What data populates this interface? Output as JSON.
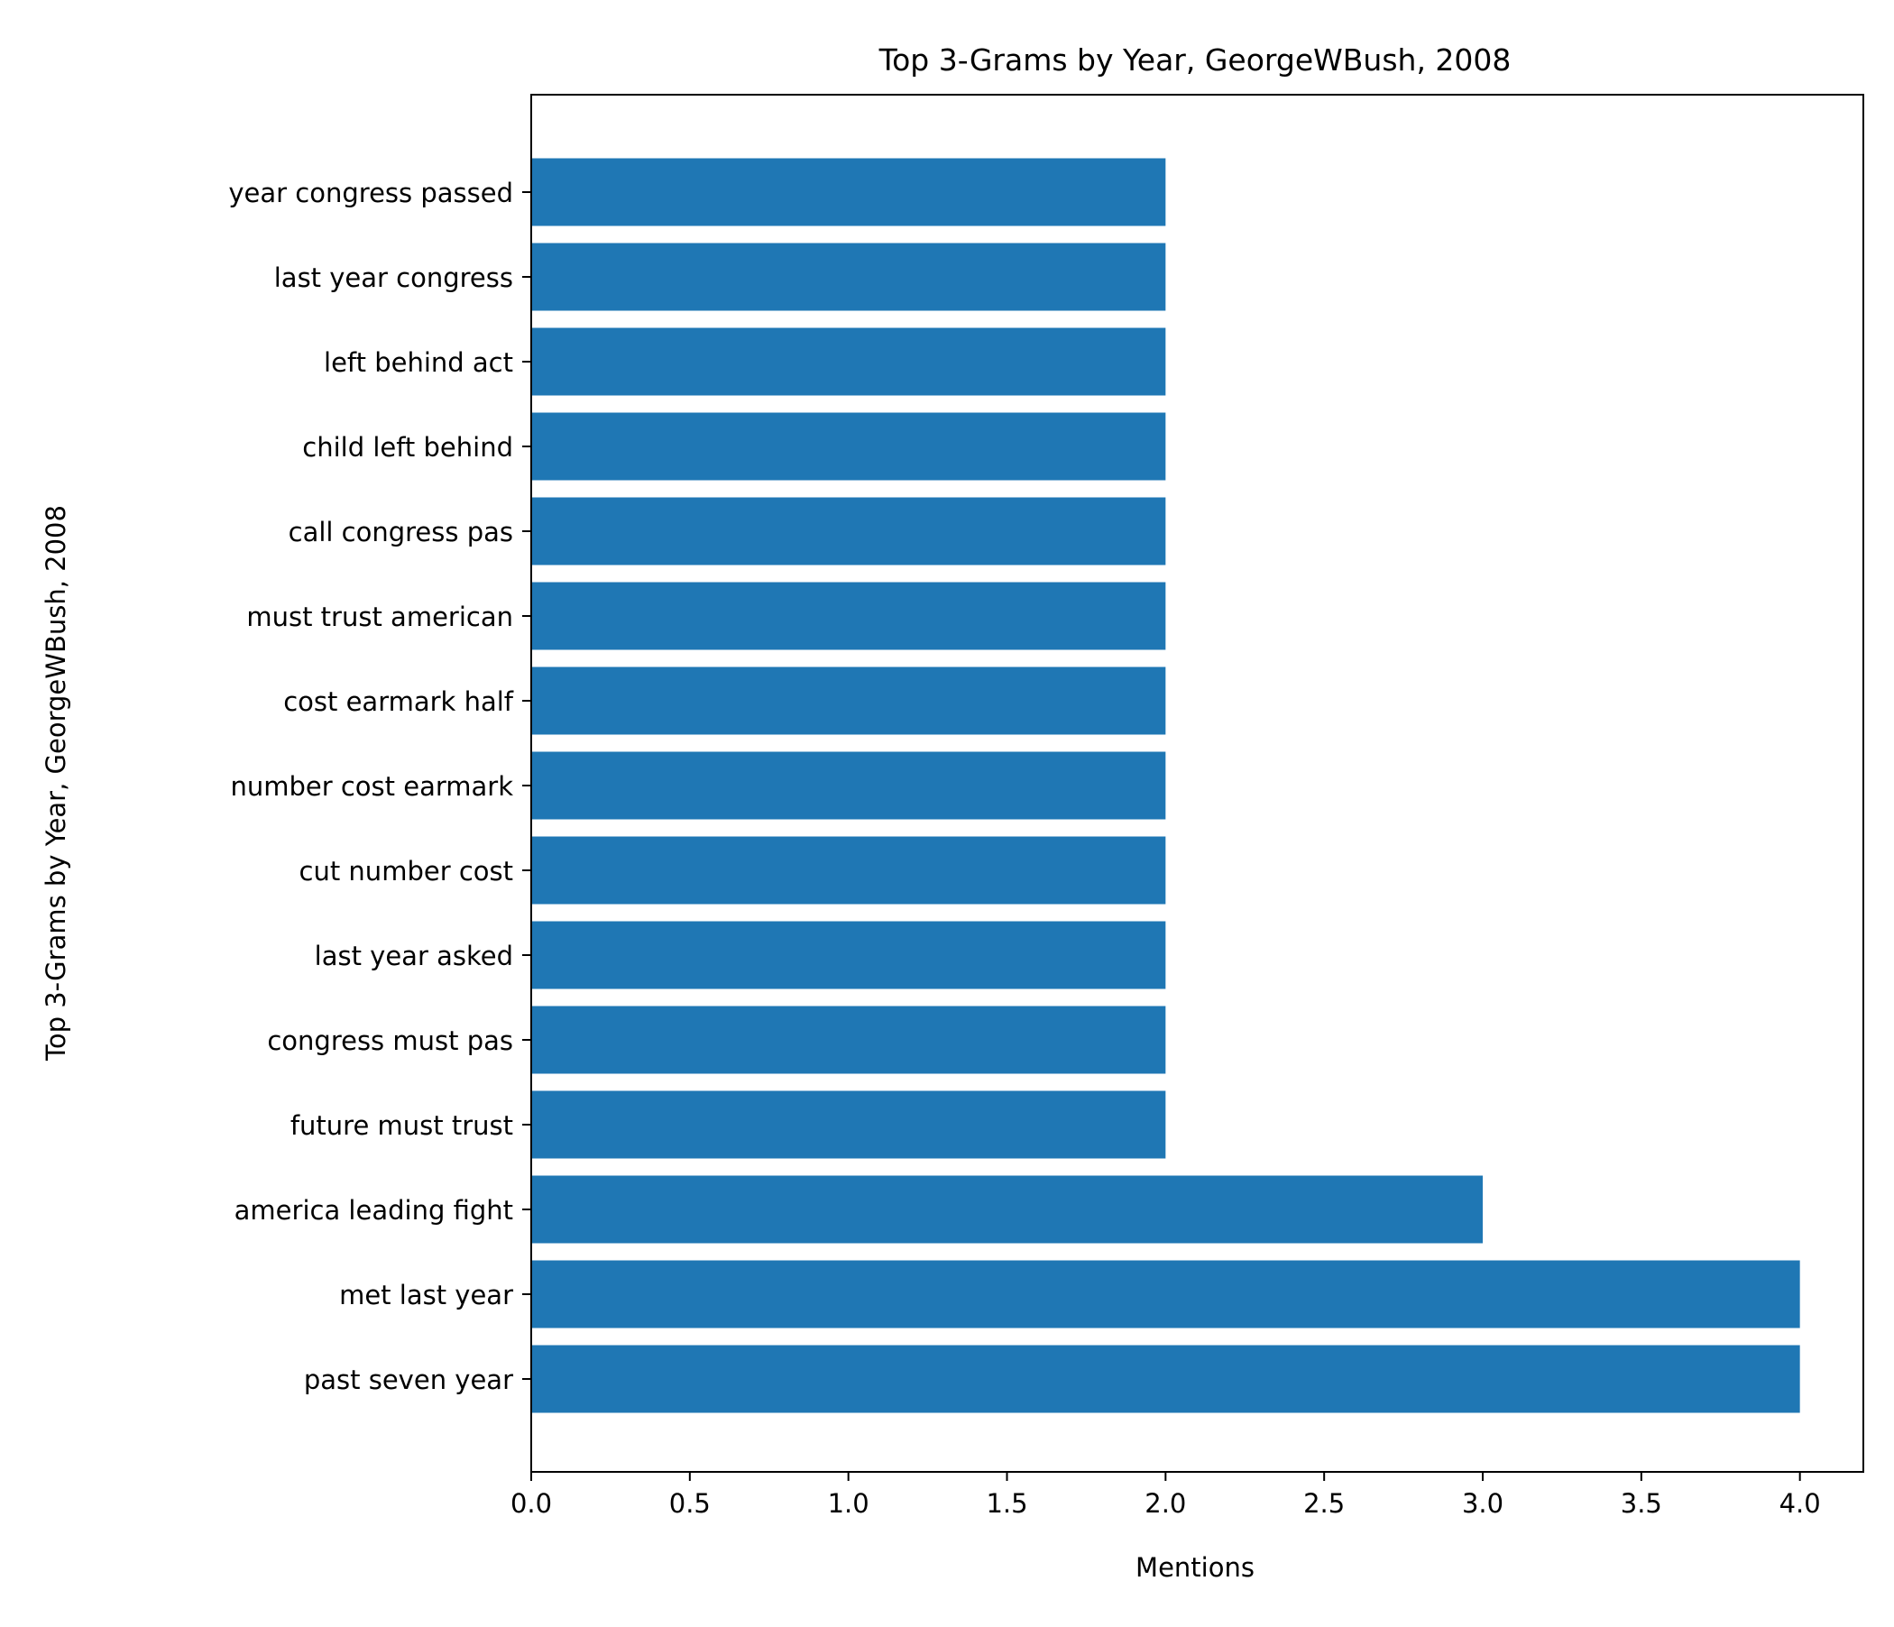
{
  "chart_data": {
    "type": "bar",
    "orientation": "horizontal",
    "title": "Top 3-Grams by Year, GeorgeWBush, 2008",
    "xlabel": "Mentions",
    "ylabel": "Top 3-Grams by Year, GeorgeWBush, 2008",
    "xlim": [
      0,
      4.2
    ],
    "xticks": [
      "0.0",
      "0.5",
      "1.0",
      "1.5",
      "2.0",
      "2.5",
      "3.0",
      "3.5",
      "4.0"
    ],
    "grid": false,
    "legend": "none",
    "bar_color": "#1f77b4",
    "categories": [
      "year congress passed",
      "last year congress",
      "left behind act",
      "child left behind",
      "call congress pas",
      "must trust american",
      "cost earmark half",
      "number cost earmark",
      "cut number cost",
      "last year asked",
      "congress must pas",
      "future must trust",
      "america leading fight",
      "met last year",
      "past seven year"
    ],
    "values": [
      2,
      2,
      2,
      2,
      2,
      2,
      2,
      2,
      2,
      2,
      2,
      2,
      3,
      4,
      4
    ]
  }
}
